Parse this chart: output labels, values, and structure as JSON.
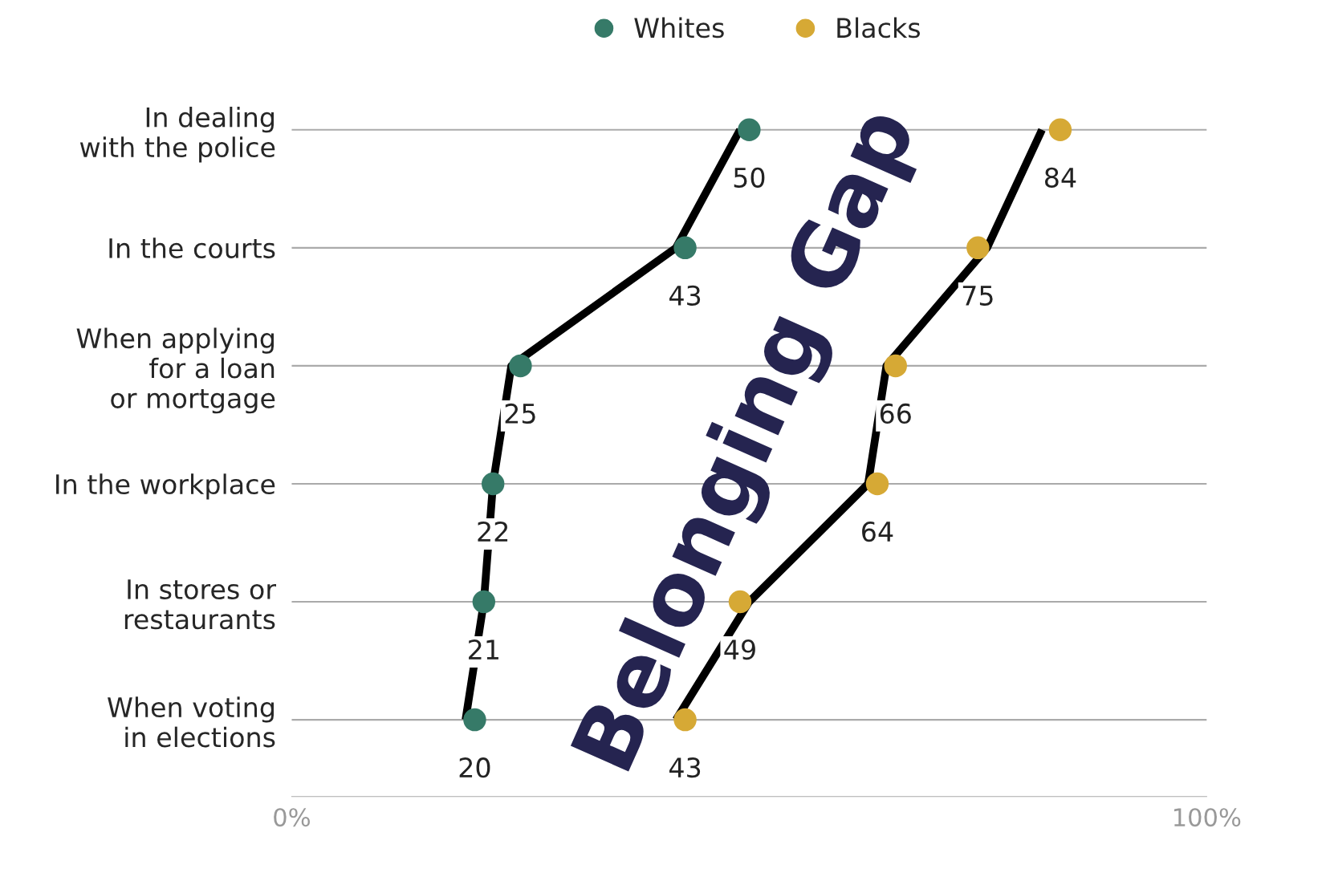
{
  "chart_data": {
    "type": "scatter",
    "orientation": "horizontal",
    "categories": [
      "In dealing\nwith the police",
      "In the courts",
      "When applying\nfor a loan\nor mortgage",
      "In the workplace",
      "In stores or\nrestaurants",
      "When voting\nin elections"
    ],
    "series": [
      {
        "name": "Whites",
        "color": "#367a68",
        "values": [
          50,
          43,
          25,
          22,
          21,
          20
        ],
        "value_labels": [
          "50",
          "43",
          "25",
          "22",
          "21",
          "20"
        ]
      },
      {
        "name": "Blacks",
        "color": "#d6a935",
        "values": [
          84,
          75,
          66,
          64,
          49,
          43
        ],
        "value_labels": [
          "84",
          "75",
          "66",
          "64",
          "49",
          "43"
        ]
      },
      {
        "type": "line",
        "color": "#000000",
        "marker": "none",
        "values": [
          49,
          42,
          24,
          22,
          21,
          19
        ]
      },
      {
        "type": "line",
        "color": "#000000",
        "marker": "none",
        "values": [
          82,
          76,
          65,
          63,
          50,
          42
        ]
      }
    ],
    "xlim": [
      0,
      100
    ],
    "xticks": [
      {
        "value": 0,
        "label": "0%"
      },
      {
        "value": 100,
        "label": "100%"
      }
    ],
    "grid": "y",
    "legend": "top",
    "marker": "circle",
    "annotations": [
      "Belonging Gap"
    ]
  }
}
